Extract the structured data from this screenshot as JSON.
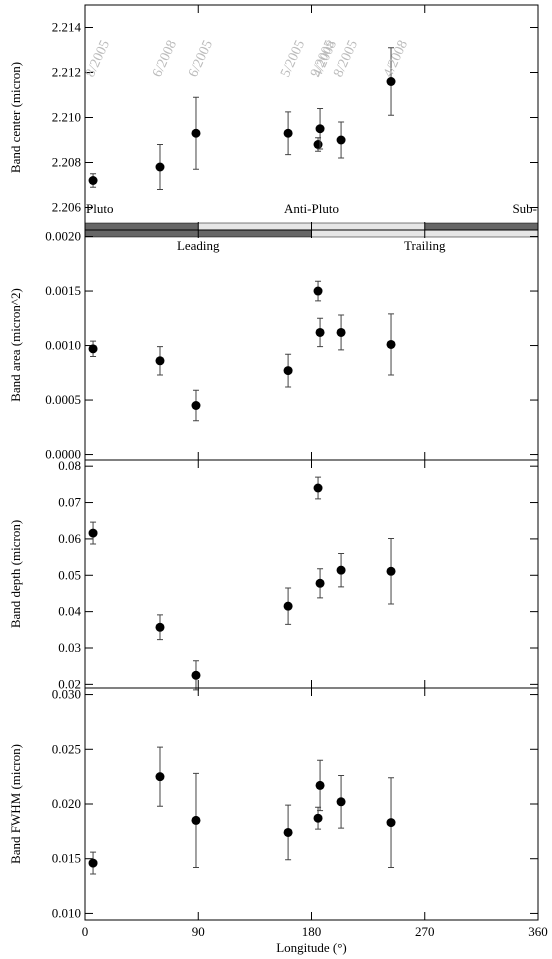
{
  "chart_data": [
    {
      "type": "scatter",
      "ylabel": "Band center (micron)",
      "x": [
        6.4,
        59.6,
        88.2,
        161.4,
        185.2,
        186.8,
        203.5,
        243.2
      ],
      "values": [
        2.2072,
        2.2078,
        2.2093,
        2.2093,
        2.2088,
        2.2095,
        2.209,
        2.2116
      ],
      "errors": [
        0.0003,
        0.001,
        0.0016,
        0.00095,
        0.0003,
        0.0009,
        0.0008,
        0.0015
      ],
      "point_labels": [
        "8/2005",
        "6/2008",
        "6/2005",
        "5/2005",
        "9/2005",
        "4/2008",
        "8/2005",
        "4/2008"
      ],
      "xlim": [
        0,
        360
      ],
      "xticks": [
        0,
        90,
        180,
        270,
        360
      ],
      "ylim": [
        2.205,
        2.215
      ],
      "yticks": [
        2.206,
        2.208,
        {
          "value": 2.21,
          "label": "2.210"
        },
        2.212,
        2.214
      ],
      "regions": [
        {
          "label": "Pluto",
          "from": 0,
          "to": 90,
          "color": "#666666"
        },
        {
          "label": "Anti-Pluto",
          "from": 90,
          "to": 270,
          "color": "#e6e6e6"
        },
        {
          "label": "Sub-",
          "from": 270,
          "to": 360,
          "color": "#666666"
        }
      ]
    },
    {
      "type": "scatter",
      "ylabel": "Band area (micron^2)",
      "x": [
        6.4,
        59.6,
        88.2,
        161.4,
        185.2,
        186.8,
        203.5,
        243.2
      ],
      "values": [
        0.00097,
        0.00086,
        0.00045,
        0.00077,
        0.0015,
        0.00112,
        0.00112,
        0.00101
      ],
      "errors": [
        7e-05,
        0.00013,
        0.00014,
        0.00015,
        9e-05,
        0.00013,
        0.00016,
        0.00028
      ],
      "xlim": [
        0,
        360
      ],
      "xticks": [
        0,
        90,
        180,
        270,
        360
      ],
      "ylim": [
        -5e-05,
        0.00206
      ],
      "yticks": [
        {
          "value": 0,
          "label": "0.0000"
        },
        {
          "value": 0.0005,
          "label": "0.0005"
        },
        {
          "value": 0.001,
          "label": "0.0010"
        },
        {
          "value": 0.0015,
          "label": "0.0015"
        },
        {
          "value": 0.002,
          "label": "0.0020"
        }
      ],
      "regions": [
        {
          "label": "Leading",
          "from": 0,
          "to": 180,
          "color": "#666666"
        },
        {
          "label": "Trailing",
          "from": 180,
          "to": 360,
          "color": "#e6e6e6"
        }
      ]
    },
    {
      "type": "scatter",
      "ylabel": "Band depth (micron)",
      "x": [
        6.4,
        59.6,
        88.2,
        161.4,
        185.2,
        186.8,
        203.5,
        243.2
      ],
      "values": [
        0.0616,
        0.0357,
        0.0225,
        0.0415,
        0.074,
        0.0478,
        0.0514,
        0.0511
      ],
      "errors": [
        0.003,
        0.0034,
        0.004,
        0.005,
        0.003,
        0.004,
        0.0046,
        0.009
      ],
      "xlim": [
        0,
        360
      ],
      "xticks": [
        0,
        90,
        180,
        270,
        360
      ],
      "ylim": [
        0.019,
        0.0817
      ],
      "yticks": [
        0.02,
        0.03,
        0.04,
        0.05,
        0.06,
        0.07,
        0.08
      ]
    },
    {
      "type": "scatter",
      "ylabel": "Band FWHM (micron)",
      "xlabel": "Longitude (°)",
      "x": [
        6.4,
        59.6,
        88.2,
        161.4,
        185.2,
        186.8,
        203.5,
        243.2
      ],
      "values": [
        0.0146,
        0.0225,
        0.0185,
        0.0174,
        0.0187,
        0.0217,
        0.0202,
        0.0183
      ],
      "errors": [
        0.001,
        0.0027,
        0.0043,
        0.0025,
        0.001,
        0.0023,
        0.0024,
        0.0041
      ],
      "xlim": [
        0,
        360
      ],
      "xticks": [
        0,
        90,
        180,
        270,
        360
      ],
      "ylim": [
        0.0094,
        0.0306
      ],
      "yticks": [
        {
          "value": 0.01,
          "label": "0.010"
        },
        {
          "value": 0.015,
          "label": "0.015"
        },
        {
          "value": 0.02,
          "label": "0.020"
        },
        {
          "value": 0.025,
          "label": "0.025"
        },
        {
          "value": 0.03,
          "label": "0.030"
        }
      ]
    }
  ]
}
